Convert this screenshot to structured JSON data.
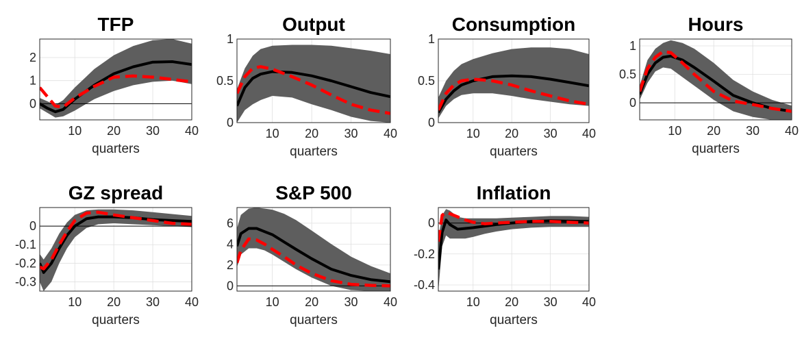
{
  "chart_data": [
    {
      "type": "line",
      "title": "TFP",
      "xlabel": "quarters",
      "xlim": [
        1,
        40
      ],
      "ylim": [
        -0.7,
        2.8
      ],
      "xticks": [
        10,
        20,
        30,
        40
      ],
      "yticks": [
        0,
        1,
        2
      ],
      "zero_line": true,
      "grid": true,
      "x": [
        1,
        3,
        5,
        7,
        10,
        15,
        20,
        25,
        30,
        35,
        40
      ],
      "band_upper": [
        0.25,
        0.1,
        -0.05,
        0.15,
        0.7,
        1.5,
        2.1,
        2.5,
        2.75,
        2.8,
        2.6
      ],
      "band_lower": [
        -0.2,
        -0.4,
        -0.6,
        -0.55,
        -0.3,
        0.2,
        0.55,
        0.8,
        0.95,
        1.0,
        0.85
      ],
      "series": [
        {
          "values": [
            0.0,
            -0.2,
            -0.35,
            -0.25,
            0.2,
            0.8,
            1.3,
            1.6,
            1.8,
            1.82,
            1.7
          ],
          "color": "#000000",
          "style": "solid"
        },
        {
          "values": [
            0.7,
            0.3,
            -0.1,
            -0.15,
            0.25,
            0.75,
            1.15,
            1.2,
            1.15,
            1.05,
            0.95
          ],
          "color": "#ff0000",
          "style": "dashed"
        }
      ]
    },
    {
      "type": "line",
      "title": "Output",
      "xlabel": "quarters",
      "xlim": [
        1,
        40
      ],
      "ylim": [
        0,
        1
      ],
      "xticks": [
        10,
        20,
        30,
        40
      ],
      "yticks": [
        0,
        0.5,
        1
      ],
      "zero_line": false,
      "grid": true,
      "x": [
        1,
        3,
        5,
        7,
        10,
        15,
        20,
        25,
        30,
        35,
        40
      ],
      "band_upper": [
        0.4,
        0.65,
        0.8,
        0.88,
        0.92,
        0.93,
        0.93,
        0.92,
        0.89,
        0.86,
        0.82
      ],
      "band_lower": [
        0.0,
        0.15,
        0.22,
        0.27,
        0.32,
        0.3,
        0.22,
        0.15,
        0.07,
        0.02,
        0.0
      ],
      "series": [
        {
          "values": [
            0.2,
            0.42,
            0.53,
            0.58,
            0.61,
            0.6,
            0.56,
            0.5,
            0.43,
            0.36,
            0.31
          ],
          "color": "#000000",
          "style": "solid"
        },
        {
          "values": [
            0.35,
            0.55,
            0.65,
            0.67,
            0.64,
            0.55,
            0.45,
            0.33,
            0.22,
            0.15,
            0.11
          ],
          "color": "#ff0000",
          "style": "dashed"
        }
      ]
    },
    {
      "type": "line",
      "title": "Consumption",
      "xlabel": "quarters",
      "xlim": [
        1,
        40
      ],
      "ylim": [
        0,
        1
      ],
      "xticks": [
        10,
        20,
        30,
        40
      ],
      "yticks": [
        0,
        0.5,
        1
      ],
      "zero_line": false,
      "grid": true,
      "x": [
        1,
        3,
        5,
        7,
        10,
        15,
        20,
        25,
        30,
        35,
        40
      ],
      "band_upper": [
        0.3,
        0.5,
        0.62,
        0.7,
        0.76,
        0.83,
        0.88,
        0.9,
        0.9,
        0.88,
        0.82
      ],
      "band_lower": [
        0.05,
        0.2,
        0.28,
        0.33,
        0.35,
        0.35,
        0.32,
        0.28,
        0.25,
        0.22,
        0.2
      ],
      "series": [
        {
          "values": [
            0.12,
            0.28,
            0.38,
            0.45,
            0.5,
            0.55,
            0.56,
            0.55,
            0.52,
            0.48,
            0.44
          ],
          "color": "#000000",
          "style": "solid"
        },
        {
          "values": [
            0.15,
            0.35,
            0.45,
            0.5,
            0.52,
            0.5,
            0.45,
            0.38,
            0.32,
            0.26,
            0.22
          ],
          "color": "#ff0000",
          "style": "dashed"
        }
      ]
    },
    {
      "type": "line",
      "title": "Hours",
      "xlabel": "quarters",
      "xlim": [
        1,
        40
      ],
      "ylim": [
        -0.3,
        1.12
      ],
      "xticks": [
        10,
        20,
        30,
        40
      ],
      "yticks": [
        0,
        0.5,
        1
      ],
      "zero_line": true,
      "grid": true,
      "x": [
        1,
        3,
        5,
        7,
        9,
        12,
        15,
        20,
        25,
        30,
        35,
        40
      ],
      "band_upper": [
        0.3,
        0.75,
        0.95,
        1.05,
        1.1,
        1.05,
        0.95,
        0.7,
        0.4,
        0.2,
        0.05,
        -0.05
      ],
      "band_lower": [
        0.05,
        0.35,
        0.55,
        0.62,
        0.6,
        0.45,
        0.3,
        0.05,
        -0.15,
        -0.25,
        -0.3,
        -0.3
      ],
      "series": [
        {
          "values": [
            0.15,
            0.5,
            0.7,
            0.8,
            0.82,
            0.75,
            0.62,
            0.38,
            0.13,
            0.0,
            -0.1,
            -0.15
          ],
          "color": "#000000",
          "style": "solid"
        },
        {
          "values": [
            0.2,
            0.6,
            0.8,
            0.9,
            0.88,
            0.7,
            0.5,
            0.2,
            0.03,
            -0.03,
            -0.1,
            -0.15
          ],
          "color": "#ff0000",
          "style": "dashed"
        }
      ]
    },
    {
      "type": "line",
      "title": "GZ spread",
      "xlabel": "quarters",
      "xlim": [
        1,
        40
      ],
      "ylim": [
        -0.35,
        0.1
      ],
      "xticks": [
        10,
        20,
        30,
        40
      ],
      "yticks": [
        -0.3,
        -0.2,
        -0.1,
        0
      ],
      "zero_line": true,
      "grid": true,
      "x": [
        1,
        2,
        4,
        6,
        8,
        10,
        13,
        16,
        20,
        25,
        30,
        35,
        40
      ],
      "band_upper": [
        -0.15,
        -0.18,
        -0.12,
        -0.04,
        0.02,
        0.06,
        0.085,
        0.09,
        0.09,
        0.085,
        0.075,
        0.065,
        0.055
      ],
      "band_lower": [
        -0.3,
        -0.35,
        -0.3,
        -0.2,
        -0.12,
        -0.06,
        -0.01,
        0.01,
        0.015,
        0.01,
        0.005,
        0.0,
        -0.005
      ],
      "series": [
        {
          "values": [
            -0.2,
            -0.25,
            -0.2,
            -0.12,
            -0.05,
            0.0,
            0.04,
            0.05,
            0.05,
            0.045,
            0.035,
            0.03,
            0.025
          ],
          "color": "#000000",
          "style": "solid"
        },
        {
          "values": [
            -0.22,
            -0.23,
            -0.18,
            -0.1,
            -0.03,
            0.03,
            0.07,
            0.075,
            0.06,
            0.045,
            0.03,
            0.015,
            0.01
          ],
          "color": "#ff0000",
          "style": "dashed"
        }
      ]
    },
    {
      "type": "line",
      "title": "S&P 500",
      "xlabel": "quarters",
      "xlim": [
        1,
        40
      ],
      "ylim": [
        -0.5,
        7.5
      ],
      "xticks": [
        10,
        20,
        30,
        40
      ],
      "yticks": [
        0,
        2,
        4,
        6
      ],
      "zero_line": true,
      "grid": true,
      "x": [
        1,
        2,
        4,
        6,
        8,
        10,
        13,
        16,
        20,
        25,
        30,
        35,
        40
      ],
      "band_upper": [
        5.5,
        6.8,
        7.4,
        7.5,
        7.4,
        7.3,
        6.9,
        6.3,
        5.3,
        4.0,
        2.8,
        1.9,
        1.2
      ],
      "band_lower": [
        1.8,
        3.0,
        3.6,
        3.6,
        3.4,
        3.0,
        2.3,
        1.6,
        0.8,
        0.0,
        -0.4,
        -0.5,
        -0.5
      ],
      "series": [
        {
          "values": [
            3.8,
            5.0,
            5.5,
            5.5,
            5.2,
            4.9,
            4.2,
            3.5,
            2.6,
            1.6,
            1.0,
            0.6,
            0.4
          ],
          "color": "#000000",
          "style": "solid"
        },
        {
          "values": [
            2.2,
            3.4,
            4.5,
            4.4,
            4.0,
            3.5,
            2.8,
            2.0,
            1.2,
            0.5,
            0.15,
            0.05,
            0.0
          ],
          "color": "#ff0000",
          "style": "dashed"
        }
      ]
    },
    {
      "type": "line",
      "title": "Inflation",
      "xlabel": "quarters",
      "xlim": [
        1,
        40
      ],
      "ylim": [
        -0.44,
        0.1
      ],
      "xticks": [
        10,
        20,
        30,
        40
      ],
      "yticks": [
        -0.4,
        -0.2,
        0
      ],
      "zero_line": true,
      "grid": true,
      "x": [
        1,
        2,
        3,
        4,
        6,
        8,
        10,
        13,
        16,
        20,
        25,
        30,
        35,
        40
      ],
      "band_upper": [
        -0.1,
        0.05,
        0.09,
        0.08,
        0.04,
        0.03,
        0.03,
        0.03,
        0.03,
        0.035,
        0.04,
        0.045,
        0.045,
        0.04
      ],
      "band_lower": [
        -0.44,
        -0.15,
        -0.08,
        -0.1,
        -0.1,
        -0.1,
        -0.09,
        -0.07,
        -0.055,
        -0.04,
        -0.03,
        -0.025,
        -0.025,
        -0.025
      ],
      "series": [
        {
          "values": [
            -0.3,
            -0.06,
            0.02,
            -0.01,
            -0.04,
            -0.035,
            -0.03,
            -0.02,
            -0.01,
            0.0,
            0.01,
            0.015,
            0.012,
            0.01
          ],
          "color": "#000000",
          "style": "solid"
        },
        {
          "values": [
            -0.12,
            0.05,
            0.07,
            0.06,
            0.04,
            0.02,
            0.005,
            -0.005,
            0.0,
            0.005,
            0.01,
            0.01,
            0.005,
            0.0
          ],
          "color": "#ff0000",
          "style": "dashed"
        }
      ]
    }
  ]
}
